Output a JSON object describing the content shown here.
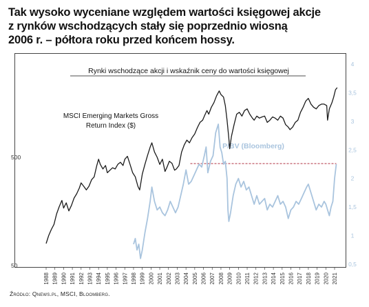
{
  "headline": {
    "line1": "Tak wysoko wyceniane względem wartości księgowej akcje",
    "line2": "z rynków wschodzących stały się poprzednio wiosną",
    "line3": "2006 r. – półtora roku przed końcem hossy."
  },
  "source": "Źródło: Qnews.pl, MSCI, Bloomberg.",
  "colors": {
    "msci": "#1a1a1a",
    "pbv": "#a9c4de",
    "reference": "#b03040",
    "frame": "#444444"
  },
  "chart_data": {
    "type": "line",
    "title": "Rynki wschodzące akcji i wskaźnik ceny do wartości księgowej",
    "x_tick_labels": [
      "1988",
      "1989",
      "1990",
      "1991",
      "1992",
      "1993",
      "1994",
      "1995",
      "1996",
      "1997",
      "1998",
      "1999",
      "2000",
      "2001",
      "2002",
      "2003",
      "2004",
      "2005",
      "2006",
      "2007",
      "2008",
      "2009",
      "2010",
      "2011",
      "2012",
      "2013",
      "2014",
      "2015",
      "2016",
      "2017",
      "2018",
      "2019",
      "2020",
      "2021"
    ],
    "xlim": [
      1988,
      2021.5
    ],
    "left_axis": {
      "scale": "log",
      "tick_labels": [
        "50",
        "500"
      ]
    },
    "right_axis": {
      "scale": "linear",
      "ylim": [
        0.5,
        4
      ],
      "tick_labels": [
        "0,5",
        "1",
        "1,5",
        "2",
        "2,5",
        "3",
        "3,5",
        "4"
      ]
    },
    "grid": false,
    "series": [
      {
        "name": "MSCI Emerging Markets Gross Return Index ($)",
        "axis": "left",
        "x": [
          1988.0,
          1988.3,
          1988.6,
          1988.9,
          1989.2,
          1989.5,
          1989.8,
          1990.0,
          1990.3,
          1990.6,
          1990.9,
          1991.2,
          1991.5,
          1991.8,
          1992.0,
          1992.3,
          1992.6,
          1992.9,
          1993.2,
          1993.5,
          1993.8,
          1994.0,
          1994.2,
          1994.5,
          1994.8,
          1995.0,
          1995.3,
          1995.6,
          1995.9,
          1996.2,
          1996.5,
          1996.8,
          1997.0,
          1997.3,
          1997.6,
          1997.9,
          1998.2,
          1998.5,
          1998.7,
          1999.0,
          1999.3,
          1999.6,
          1999.9,
          2000.1,
          2000.4,
          2000.7,
          2001.0,
          2001.3,
          2001.6,
          2001.8,
          2002.1,
          2002.4,
          2002.7,
          2002.9,
          2003.2,
          2003.5,
          2003.8,
          2004.1,
          2004.4,
          2004.7,
          2005.0,
          2005.3,
          2005.6,
          2005.9,
          2006.2,
          2006.4,
          2006.6,
          2006.9,
          2007.2,
          2007.5,
          2007.8,
          2008.0,
          2008.3,
          2008.5,
          2008.7,
          2008.9,
          2009.0,
          2009.2,
          2009.5,
          2009.8,
          2010.1,
          2010.4,
          2010.7,
          2011.0,
          2011.3,
          2011.6,
          2011.8,
          2012.1,
          2012.4,
          2012.7,
          2013.0,
          2013.3,
          2013.6,
          2013.9,
          2014.2,
          2014.5,
          2014.8,
          2015.1,
          2015.4,
          2015.7,
          2015.9,
          2016.2,
          2016.5,
          2016.8,
          2017.1,
          2017.4,
          2017.7,
          2018.0,
          2018.3,
          2018.6,
          2018.9,
          2019.2,
          2019.5,
          2019.8,
          2020.1,
          2020.2,
          2020.4,
          2020.7,
          2020.9,
          2021.1,
          2021.3
        ],
        "y": [
          80,
          95,
          108,
          120,
          150,
          175,
          200,
          170,
          190,
          160,
          180,
          210,
          230,
          260,
          290,
          270,
          250,
          270,
          310,
          330,
          420,
          480,
          430,
          390,
          420,
          360,
          380,
          400,
          390,
          430,
          450,
          420,
          480,
          510,
          430,
          360,
          330,
          270,
          250,
          350,
          430,
          520,
          620,
          680,
          560,
          500,
          430,
          480,
          370,
          400,
          460,
          440,
          380,
          390,
          420,
          560,
          650,
          720,
          680,
          760,
          820,
          940,
          1050,
          1100,
          1250,
          1350,
          1250,
          1450,
          1600,
          1850,
          2050,
          1900,
          1800,
          1500,
          1100,
          750,
          600,
          780,
          1000,
          1250,
          1300,
          1200,
          1350,
          1400,
          1250,
          1150,
          1100,
          1200,
          1150,
          1180,
          1200,
          1050,
          1100,
          1180,
          1150,
          1100,
          1200,
          1150,
          1000,
          950,
          900,
          950,
          1050,
          1100,
          1300,
          1450,
          1650,
          1750,
          1550,
          1450,
          1400,
          1500,
          1550,
          1550,
          1500,
          1100,
          1400,
          1600,
          1800,
          2100,
          2200
        ]
      },
      {
        "name": "P/BV (Bloomberg)",
        "axis": "right",
        "x": [
          1998.0,
          1998.2,
          1998.4,
          1998.6,
          1998.8,
          1999.0,
          1999.3,
          1999.6,
          1999.9,
          2000.1,
          2000.4,
          2000.7,
          2001.0,
          2001.3,
          2001.6,
          2001.9,
          2002.2,
          2002.5,
          2002.8,
          2003.1,
          2003.4,
          2003.7,
          2004.0,
          2004.3,
          2004.6,
          2004.9,
          2005.2,
          2005.5,
          2005.8,
          2006.1,
          2006.3,
          2006.5,
          2006.8,
          2007.1,
          2007.4,
          2007.7,
          2007.9,
          2008.1,
          2008.3,
          2008.5,
          2008.7,
          2008.8,
          2008.9,
          2009.1,
          2009.4,
          2009.7,
          2010.0,
          2010.3,
          2010.6,
          2010.9,
          2011.2,
          2011.5,
          2011.8,
          2012.1,
          2012.4,
          2012.7,
          2013.0,
          2013.3,
          2013.6,
          2013.9,
          2014.2,
          2014.5,
          2014.8,
          2015.1,
          2015.4,
          2015.7,
          2016.0,
          2016.3,
          2016.6,
          2016.9,
          2017.2,
          2017.5,
          2017.8,
          2018.0,
          2018.3,
          2018.6,
          2018.9,
          2019.2,
          2019.5,
          2019.8,
          2020.0,
          2020.2,
          2020.4,
          2020.6,
          2020.8,
          2021.0,
          2021.2
        ],
        "y": [
          0.85,
          0.95,
          0.75,
          0.85,
          0.6,
          0.75,
          1.05,
          1.3,
          1.6,
          1.85,
          1.6,
          1.45,
          1.5,
          1.4,
          1.35,
          1.45,
          1.6,
          1.5,
          1.4,
          1.5,
          1.7,
          1.9,
          2.15,
          1.9,
          1.95,
          2.05,
          2.15,
          2.25,
          2.2,
          2.4,
          2.55,
          2.1,
          2.3,
          2.4,
          2.8,
          2.95,
          2.55,
          2.45,
          2.25,
          2.3,
          2.0,
          1.45,
          1.25,
          1.4,
          1.7,
          1.9,
          2.0,
          1.85,
          1.95,
          1.8,
          1.85,
          1.7,
          1.55,
          1.7,
          1.55,
          1.6,
          1.65,
          1.45,
          1.55,
          1.5,
          1.6,
          1.7,
          1.55,
          1.6,
          1.5,
          1.3,
          1.45,
          1.5,
          1.6,
          1.55,
          1.65,
          1.75,
          1.85,
          1.9,
          1.75,
          1.6,
          1.45,
          1.55,
          1.5,
          1.6,
          1.55,
          1.45,
          1.35,
          1.5,
          1.6,
          2.0,
          2.25
        ]
      }
    ],
    "reference_line": {
      "style": "dashed",
      "axis": "right",
      "y": 2.26,
      "x_start": 2004.5,
      "x_end": 2021.2
    },
    "annotations": [
      {
        "text_line1": "MSCI Emerging Markets Gross",
        "text_line2": "Return Index ($)"
      },
      {
        "text": "P/BV (Bloomberg)"
      }
    ]
  }
}
